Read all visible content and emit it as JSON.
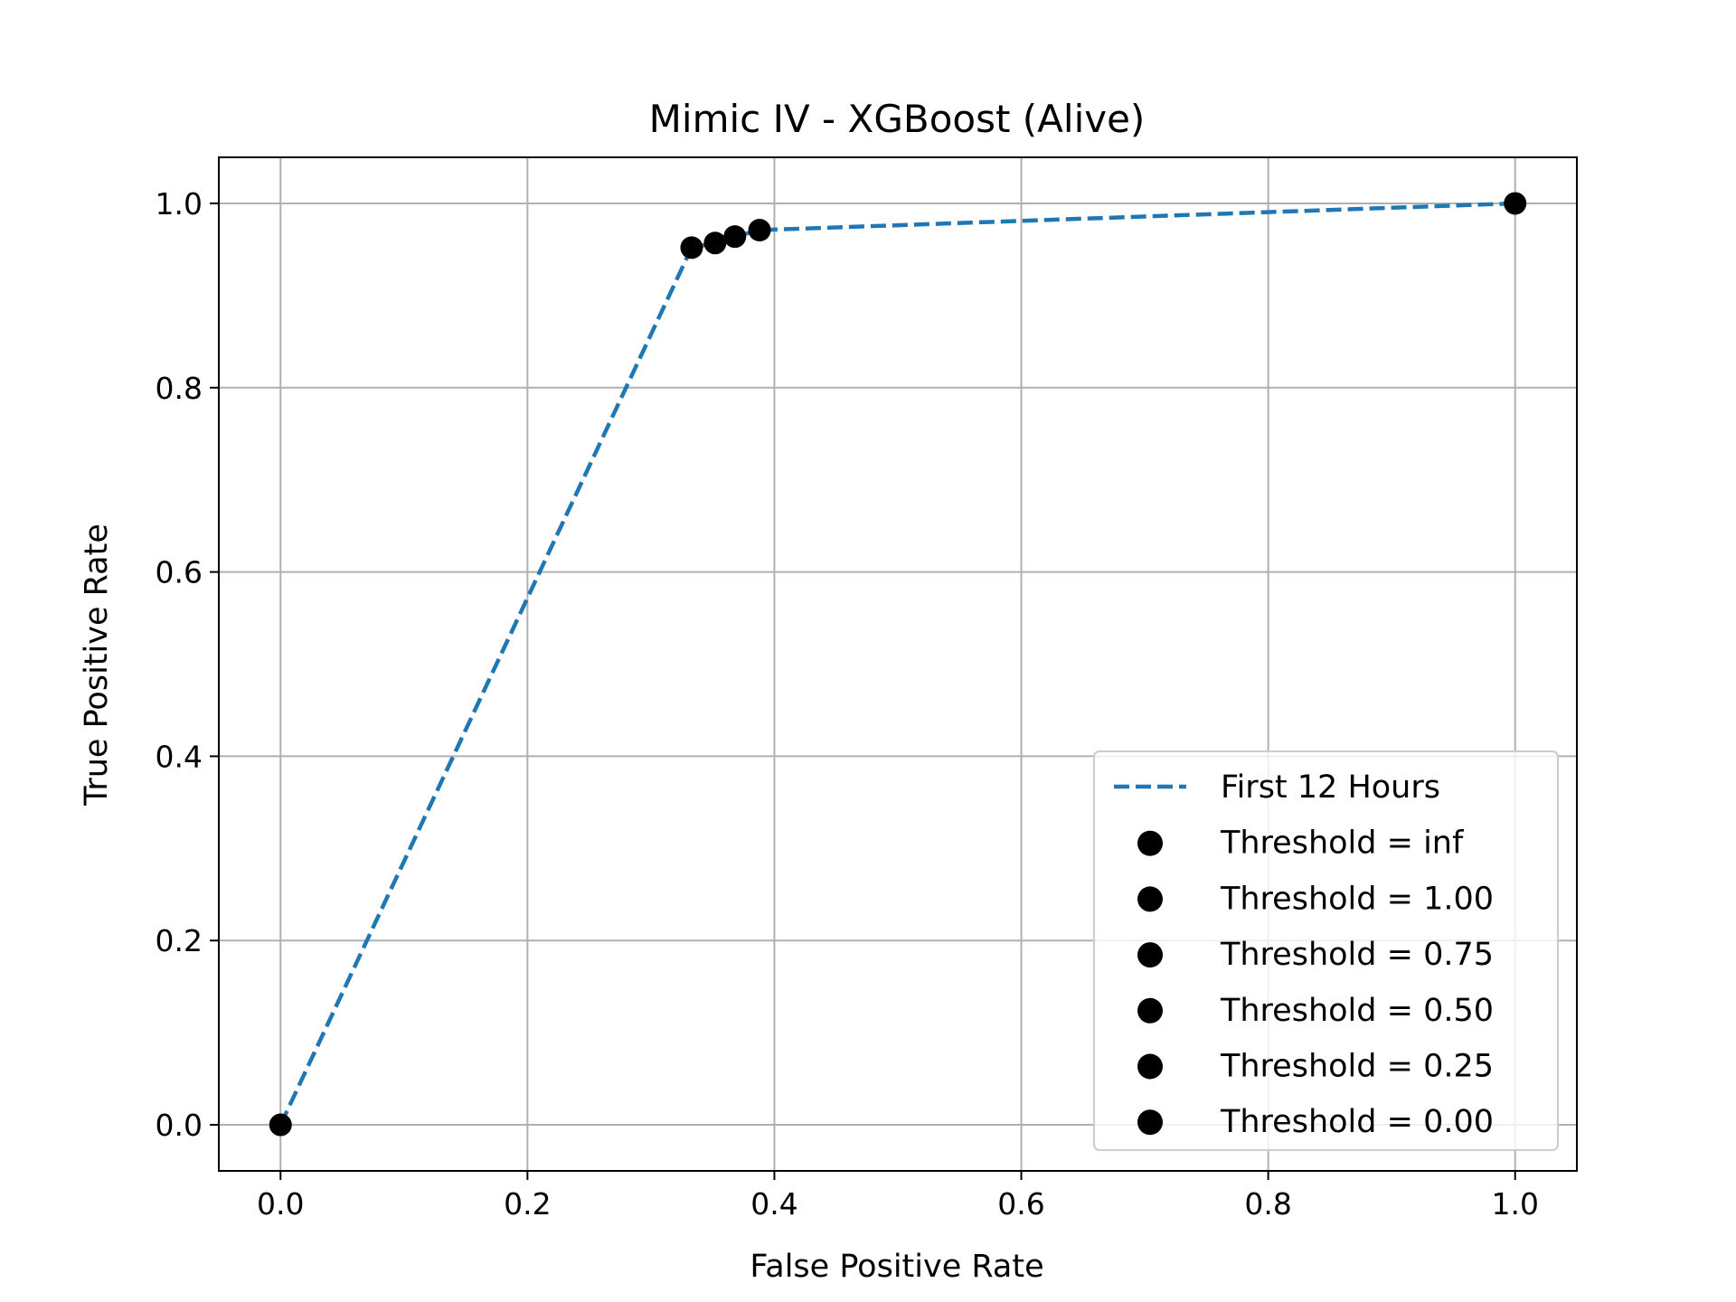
{
  "chart_data": {
    "type": "line",
    "title": "Mimic IV - XGBoost (Alive)",
    "xlabel": "False Positive Rate",
    "ylabel": "True Positive Rate",
    "xlim": [
      -0.05,
      1.05
    ],
    "ylim": [
      -0.05,
      1.05
    ],
    "xticks": [
      0.0,
      0.2,
      0.4,
      0.6,
      0.8,
      1.0
    ],
    "yticks": [
      0.0,
      0.2,
      0.4,
      0.6,
      0.8,
      1.0
    ],
    "xtick_labels": [
      "0.0",
      "0.2",
      "0.4",
      "0.6",
      "0.8",
      "1.0"
    ],
    "ytick_labels": [
      "0.0",
      "0.2",
      "0.4",
      "0.6",
      "0.8",
      "1.0"
    ],
    "grid": true,
    "legend_position": "lower-right",
    "series": [
      {
        "name": "First 12 Hours",
        "style": "dashed",
        "color": "#1f77b4",
        "x": [
          0.0,
          0.333,
          0.352,
          0.368,
          0.388,
          1.0
        ],
        "y": [
          0.0,
          0.952,
          0.957,
          0.964,
          0.971,
          1.0
        ]
      }
    ],
    "threshold_points": [
      {
        "name": "Threshold = inf",
        "x": 0.0,
        "y": 0.0
      },
      {
        "name": "Threshold = 1.00",
        "x": 0.333,
        "y": 0.952
      },
      {
        "name": "Threshold = 0.75",
        "x": 0.352,
        "y": 0.957
      },
      {
        "name": "Threshold = 0.50",
        "x": 0.368,
        "y": 0.964
      },
      {
        "name": "Threshold = 0.25",
        "x": 0.388,
        "y": 0.971
      },
      {
        "name": "Threshold = 0.00",
        "x": 1.0,
        "y": 1.0
      }
    ],
    "point_color": "#000000"
  }
}
